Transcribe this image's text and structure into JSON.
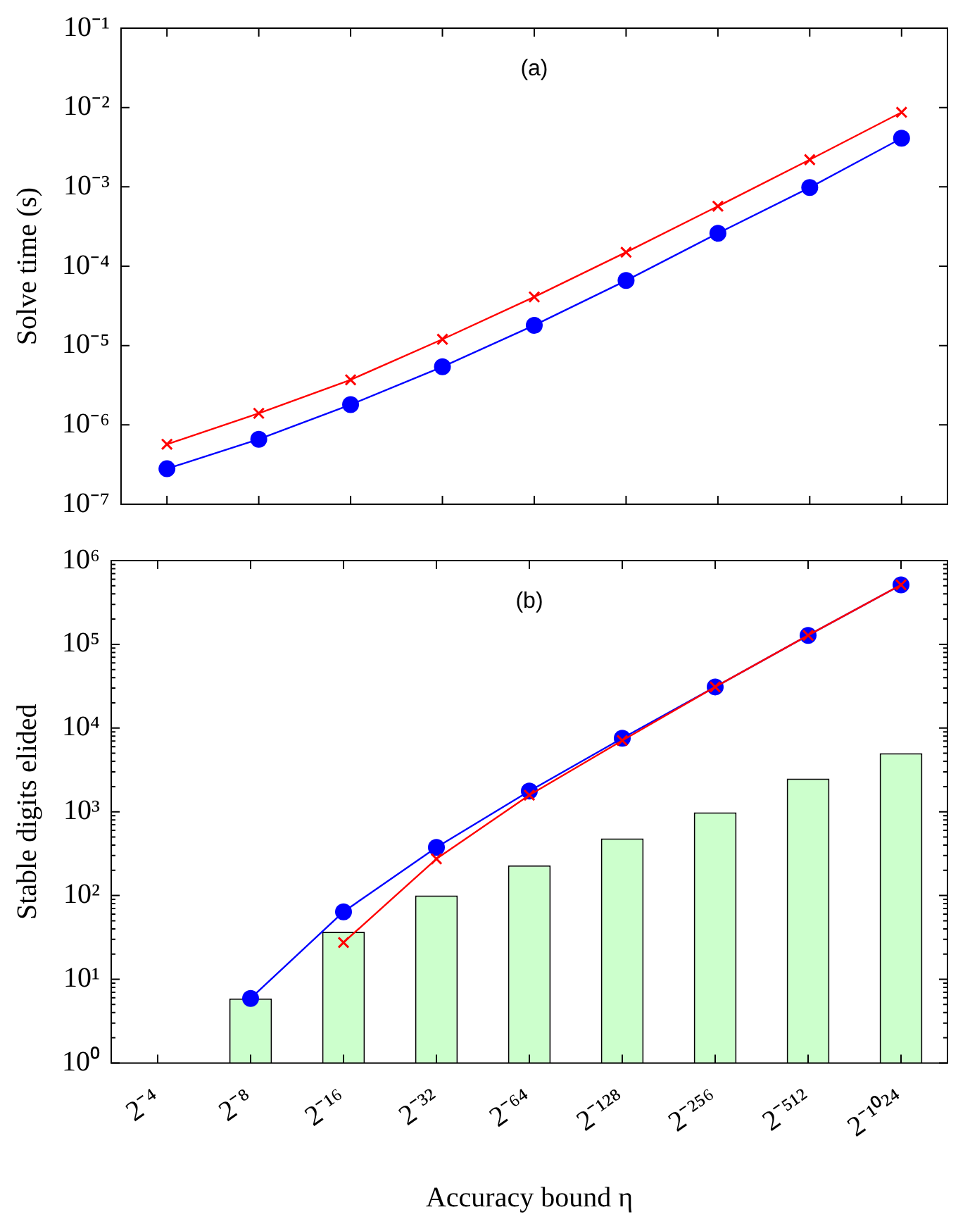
{
  "chart_data": [
    {
      "type": "line",
      "ylabel": "Solve time (s)",
      "annotations": [
        "(a)"
      ],
      "log": "y",
      "tick_labels": "y",
      "categories": [
        null,
        null,
        null,
        null,
        null,
        null,
        null,
        null,
        null
      ],
      "ylim": [
        1e-07,
        0.1
      ],
      "yticks": [
        {
          "value": 1e-07,
          "label": "10⁻⁷"
        },
        {
          "value": 1e-06,
          "label": "10⁻⁶"
        },
        {
          "value": 1e-05,
          "label": "10⁻⁵"
        },
        {
          "value": 0.0001,
          "label": "10⁻⁴"
        },
        {
          "value": 0.001,
          "label": "10⁻³"
        },
        {
          "value": 0.01,
          "label": "10⁻²"
        },
        {
          "value": 0.1,
          "label": "10⁻¹"
        }
      ],
      "series": [
        {
          "marker": "cross",
          "color": "#ff0000",
          "values": [
            5.7e-07,
            1.4e-06,
            3.7e-06,
            1.2e-05,
            4.1e-05,
            0.00015,
            0.00057,
            0.0022,
            0.0087
          ]
        },
        {
          "marker": "circle",
          "color": "#0000ff",
          "values": [
            2.8e-07,
            6.6e-07,
            1.8e-06,
            5.4e-06,
            1.8e-05,
            6.6e-05,
            0.00026,
            0.00098,
            0.0041
          ]
        }
      ]
    },
    {
      "type": "bar",
      "ylabel": "Stable digits elided",
      "xlabel": "Accuracy bound η",
      "annotations": [
        "(b)"
      ],
      "log": "y",
      "categories": [
        "2⁻⁴",
        "2⁻⁸",
        "2⁻¹⁶",
        "2⁻³²",
        "2⁻⁶⁴",
        "2⁻¹²⁸",
        "2⁻²⁵⁶",
        "2⁻⁵¹²",
        "2⁻¹⁰²⁴"
      ],
      "ylim": [
        1,
        1000000
      ],
      "yticks": [
        {
          "value": 1,
          "label": "10⁰"
        },
        {
          "value": 2,
          "label": null
        },
        {
          "value": 3,
          "label": null
        },
        {
          "value": 4,
          "label": null
        },
        {
          "value": 5,
          "label": null
        },
        {
          "value": 6,
          "label": null
        },
        {
          "value": 7,
          "label": null
        },
        {
          "value": 8,
          "label": null
        },
        {
          "value": 9,
          "label": null
        },
        {
          "value": 10,
          "label": "10¹"
        },
        {
          "value": 20,
          "label": null
        },
        {
          "value": 30,
          "label": null
        },
        {
          "value": 40,
          "label": null
        },
        {
          "value": 50,
          "label": null
        },
        {
          "value": 60,
          "label": null
        },
        {
          "value": 70,
          "label": null
        },
        {
          "value": 80,
          "label": null
        },
        {
          "value": 90,
          "label": null
        },
        {
          "value": 100,
          "label": "10²"
        },
        {
          "value": 200,
          "label": null
        },
        {
          "value": 300,
          "label": null
        },
        {
          "value": 400,
          "label": null
        },
        {
          "value": 500,
          "label": null
        },
        {
          "value": 600,
          "label": null
        },
        {
          "value": 700,
          "label": null
        },
        {
          "value": 800,
          "label": null
        },
        {
          "value": 900,
          "label": null
        },
        {
          "value": 1000,
          "label": "10³"
        },
        {
          "value": 2000,
          "label": null
        },
        {
          "value": 3000,
          "label": null
        },
        {
          "value": 4000,
          "label": null
        },
        {
          "value": 5000,
          "label": null
        },
        {
          "value": 6000,
          "label": null
        },
        {
          "value": 7000,
          "label": null
        },
        {
          "value": 8000,
          "label": null
        },
        {
          "value": 9000,
          "label": null
        },
        {
          "value": 10000,
          "label": "10⁴"
        },
        {
          "value": 20000,
          "label": null
        },
        {
          "value": 30000,
          "label": null
        },
        {
          "value": 40000,
          "label": null
        },
        {
          "value": 50000,
          "label": null
        },
        {
          "value": 60000,
          "label": null
        },
        {
          "value": 70000,
          "label": null
        },
        {
          "value": 80000,
          "label": null
        },
        {
          "value": 90000,
          "label": null
        },
        {
          "value": 100000,
          "label": "10⁵"
        },
        {
          "value": 200000,
          "label": null
        },
        {
          "value": 300000,
          "label": null
        },
        {
          "value": 400000,
          "label": null
        },
        {
          "value": 500000,
          "label": null
        },
        {
          "value": 600000,
          "label": null
        },
        {
          "value": 700000,
          "label": null
        },
        {
          "value": 800000,
          "label": null
        },
        {
          "value": 900000,
          "label": null
        },
        {
          "value": 1000000,
          "label": "10⁶"
        }
      ],
      "series": [
        {
          "color": "#ccffcc",
          "values": [
            null,
            5.9,
            37,
            100,
            229,
            480,
            985,
            2500,
            5000
          ]
        },
        {
          "type": "line",
          "marker": "circle",
          "color": "#0000ff",
          "values": [
            null,
            5.9,
            64,
            375,
            1770,
            7550,
            31000,
            128000,
            513000
          ]
        },
        {
          "type": "line",
          "marker": "cross",
          "color": "#ff0000",
          "values": [
            null,
            null,
            27.5,
            274,
            1580,
            7100,
            31000,
            128000,
            513000
          ]
        }
      ]
    }
  ]
}
